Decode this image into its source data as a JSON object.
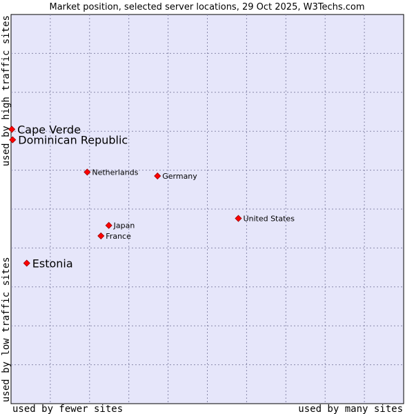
{
  "chart_data": {
    "type": "scatter",
    "title": "Market position, selected server locations, 29 Oct 2025, W3Techs.com",
    "xlabel_left": "used by fewer sites",
    "xlabel_right": "used by many sites",
    "ylabel_bottom": "used by low traffic sites",
    "ylabel_top": "used by high traffic sites",
    "xlim": [
      0,
      100
    ],
    "ylim": [
      0,
      100
    ],
    "grid": true,
    "point_color": "#ff0000",
    "plot_background": "#e6e6fa",
    "points": [
      {
        "name": "Cape Verde",
        "x": 0.2,
        "y": 70.5,
        "highlight": true
      },
      {
        "name": "Dominican Republic",
        "x": 0.4,
        "y": 67.8,
        "highlight": true
      },
      {
        "name": "Netherlands",
        "x": 19.4,
        "y": 59.5,
        "highlight": false
      },
      {
        "name": "Germany",
        "x": 37.3,
        "y": 58.5,
        "highlight": false
      },
      {
        "name": "United States",
        "x": 57.9,
        "y": 47.6,
        "highlight": false
      },
      {
        "name": "Japan",
        "x": 24.9,
        "y": 45.8,
        "highlight": false
      },
      {
        "name": "France",
        "x": 22.9,
        "y": 43.1,
        "highlight": false
      },
      {
        "name": "Estonia",
        "x": 4.0,
        "y": 36.1,
        "highlight": true
      }
    ]
  }
}
